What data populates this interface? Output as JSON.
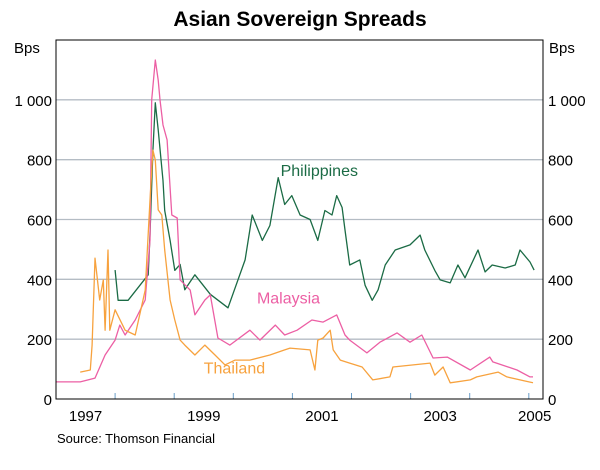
{
  "chart_data": {
    "type": "line",
    "title": "Asian Sovereign Spreads",
    "ylabel_left": "Bps",
    "ylabel_right": "Bps",
    "ylim": [
      0,
      1200
    ],
    "yticks": [
      0,
      200,
      400,
      600,
      800,
      1000
    ],
    "ytick_labels": [
      "0",
      "200",
      "400",
      "600",
      "800",
      "1 000"
    ],
    "xlim": [
      1997.0,
      2005.24
    ],
    "x_tick_years": [
      1998,
      1999,
      2000,
      2001,
      2002,
      2003,
      2004,
      2005
    ],
    "x_labels": [
      {
        "label": "1997",
        "at": 1997.5
      },
      {
        "label": "1999",
        "at": 1999.5
      },
      {
        "label": "2001",
        "at": 2001.5
      },
      {
        "label": "2003",
        "at": 2003.5
      },
      {
        "label": "2005",
        "at": 2005.1
      }
    ],
    "grid": true,
    "source": "Source: Thomson Financial",
    "series": [
      {
        "name": "Philippines",
        "color": "#1b6b45",
        "label_at": [
          2000.8,
          745
        ],
        "points": [
          [
            1998.0,
            431
          ],
          [
            1998.05,
            330
          ],
          [
            1998.22,
            330
          ],
          [
            1998.42,
            380
          ],
          [
            1998.56,
            415
          ],
          [
            1998.59,
            550
          ],
          [
            1998.64,
            830
          ],
          [
            1998.68,
            990
          ],
          [
            1998.73,
            900
          ],
          [
            1998.81,
            730
          ],
          [
            1998.84,
            630
          ],
          [
            1998.93,
            530
          ],
          [
            1999.01,
            430
          ],
          [
            1999.1,
            450
          ],
          [
            1999.18,
            365
          ],
          [
            1999.35,
            415
          ],
          [
            1999.61,
            350
          ],
          [
            1999.91,
            305
          ],
          [
            2000.2,
            465
          ],
          [
            2000.32,
            615
          ],
          [
            2000.49,
            530
          ],
          [
            2000.62,
            580
          ],
          [
            2000.76,
            740
          ],
          [
            2000.87,
            650
          ],
          [
            2000.99,
            680
          ],
          [
            2001.13,
            615
          ],
          [
            2001.3,
            600
          ],
          [
            2001.43,
            530
          ],
          [
            2001.55,
            630
          ],
          [
            2001.67,
            615
          ],
          [
            2001.75,
            680
          ],
          [
            2001.84,
            640
          ],
          [
            2001.89,
            565
          ],
          [
            2001.97,
            448
          ],
          [
            2002.14,
            465
          ],
          [
            2002.23,
            380
          ],
          [
            2002.35,
            330
          ],
          [
            2002.45,
            365
          ],
          [
            2002.57,
            448
          ],
          [
            2002.74,
            498
          ],
          [
            2002.99,
            515
          ],
          [
            2003.16,
            548
          ],
          [
            2003.24,
            498
          ],
          [
            2003.41,
            430
          ],
          [
            2003.5,
            398
          ],
          [
            2003.67,
            388
          ],
          [
            2003.8,
            448
          ],
          [
            2003.92,
            405
          ],
          [
            2004.14,
            498
          ],
          [
            2004.26,
            425
          ],
          [
            2004.38,
            448
          ],
          [
            2004.6,
            438
          ],
          [
            2004.77,
            448
          ],
          [
            2004.85,
            498
          ],
          [
            2005.02,
            458
          ],
          [
            2005.09,
            431
          ]
        ]
      },
      {
        "name": "Malaysia",
        "color": "#ec5fa4",
        "label_at": [
          2000.4,
          320
        ],
        "points": [
          [
            1997.0,
            57
          ],
          [
            1997.41,
            57
          ],
          [
            1997.66,
            70
          ],
          [
            1997.83,
            147
          ],
          [
            1998.0,
            197
          ],
          [
            1998.08,
            247
          ],
          [
            1998.17,
            214
          ],
          [
            1998.34,
            264
          ],
          [
            1998.51,
            331
          ],
          [
            1998.59,
            531
          ],
          [
            1998.62,
            1000
          ],
          [
            1998.68,
            1133
          ],
          [
            1998.73,
            1066
          ],
          [
            1998.76,
            1000
          ],
          [
            1998.81,
            916
          ],
          [
            1998.88,
            866
          ],
          [
            1998.96,
            615
          ],
          [
            1999.05,
            605
          ],
          [
            1999.1,
            398
          ],
          [
            1999.27,
            364
          ],
          [
            1999.35,
            281
          ],
          [
            1999.52,
            331
          ],
          [
            1999.61,
            348
          ],
          [
            1999.74,
            204
          ],
          [
            1999.94,
            180
          ],
          [
            2000.28,
            230
          ],
          [
            2000.45,
            197
          ],
          [
            2000.71,
            247
          ],
          [
            2000.87,
            214
          ],
          [
            2001.08,
            230
          ],
          [
            2001.33,
            264
          ],
          [
            2001.52,
            257
          ],
          [
            2001.75,
            281
          ],
          [
            2001.89,
            214
          ],
          [
            2001.97,
            197
          ],
          [
            2002.26,
            154
          ],
          [
            2002.48,
            190
          ],
          [
            2002.77,
            221
          ],
          [
            2002.99,
            190
          ],
          [
            2003.19,
            214
          ],
          [
            2003.38,
            137
          ],
          [
            2003.62,
            140
          ],
          [
            2004.01,
            97
          ],
          [
            2004.34,
            140
          ],
          [
            2004.39,
            124
          ],
          [
            2004.8,
            97
          ],
          [
            2005.02,
            74
          ],
          [
            2005.07,
            74
          ]
        ]
      },
      {
        "name": "Thailand",
        "color": "#f7a23e",
        "label_at": [
          1999.5,
          85
        ],
        "points": [
          [
            1997.41,
            90
          ],
          [
            1997.58,
            97
          ],
          [
            1997.61,
            180
          ],
          [
            1997.66,
            471
          ],
          [
            1997.74,
            331
          ],
          [
            1997.8,
            398
          ],
          [
            1997.83,
            230
          ],
          [
            1997.88,
            498
          ],
          [
            1997.91,
            230
          ],
          [
            1998.0,
            298
          ],
          [
            1998.17,
            230
          ],
          [
            1998.34,
            214
          ],
          [
            1998.51,
            364
          ],
          [
            1998.59,
            665
          ],
          [
            1998.64,
            832
          ],
          [
            1998.68,
            799
          ],
          [
            1998.73,
            632
          ],
          [
            1998.79,
            615
          ],
          [
            1998.84,
            498
          ],
          [
            1998.93,
            331
          ],
          [
            1999.01,
            264
          ],
          [
            1999.1,
            197
          ],
          [
            1999.18,
            180
          ],
          [
            1999.35,
            147
          ],
          [
            1999.52,
            180
          ],
          [
            1999.69,
            147
          ],
          [
            1999.86,
            114
          ],
          [
            2000.03,
            130
          ],
          [
            2000.28,
            130
          ],
          [
            2000.62,
            147
          ],
          [
            2000.87,
            164
          ],
          [
            2000.96,
            170
          ],
          [
            2001.3,
            164
          ],
          [
            2001.38,
            97
          ],
          [
            2001.43,
            197
          ],
          [
            2001.52,
            204
          ],
          [
            2001.64,
            230
          ],
          [
            2001.69,
            164
          ],
          [
            2001.81,
            130
          ],
          [
            2001.97,
            120
          ],
          [
            2002.18,
            107
          ],
          [
            2002.36,
            64
          ],
          [
            2002.65,
            74
          ],
          [
            2002.7,
            107
          ],
          [
            2003.33,
            120
          ],
          [
            2003.41,
            80
          ],
          [
            2003.55,
            107
          ],
          [
            2003.67,
            54
          ],
          [
            2004.01,
            64
          ],
          [
            2004.12,
            74
          ],
          [
            2004.48,
            90
          ],
          [
            2004.63,
            74
          ],
          [
            2004.85,
            64
          ],
          [
            2005.07,
            54
          ]
        ]
      }
    ]
  }
}
